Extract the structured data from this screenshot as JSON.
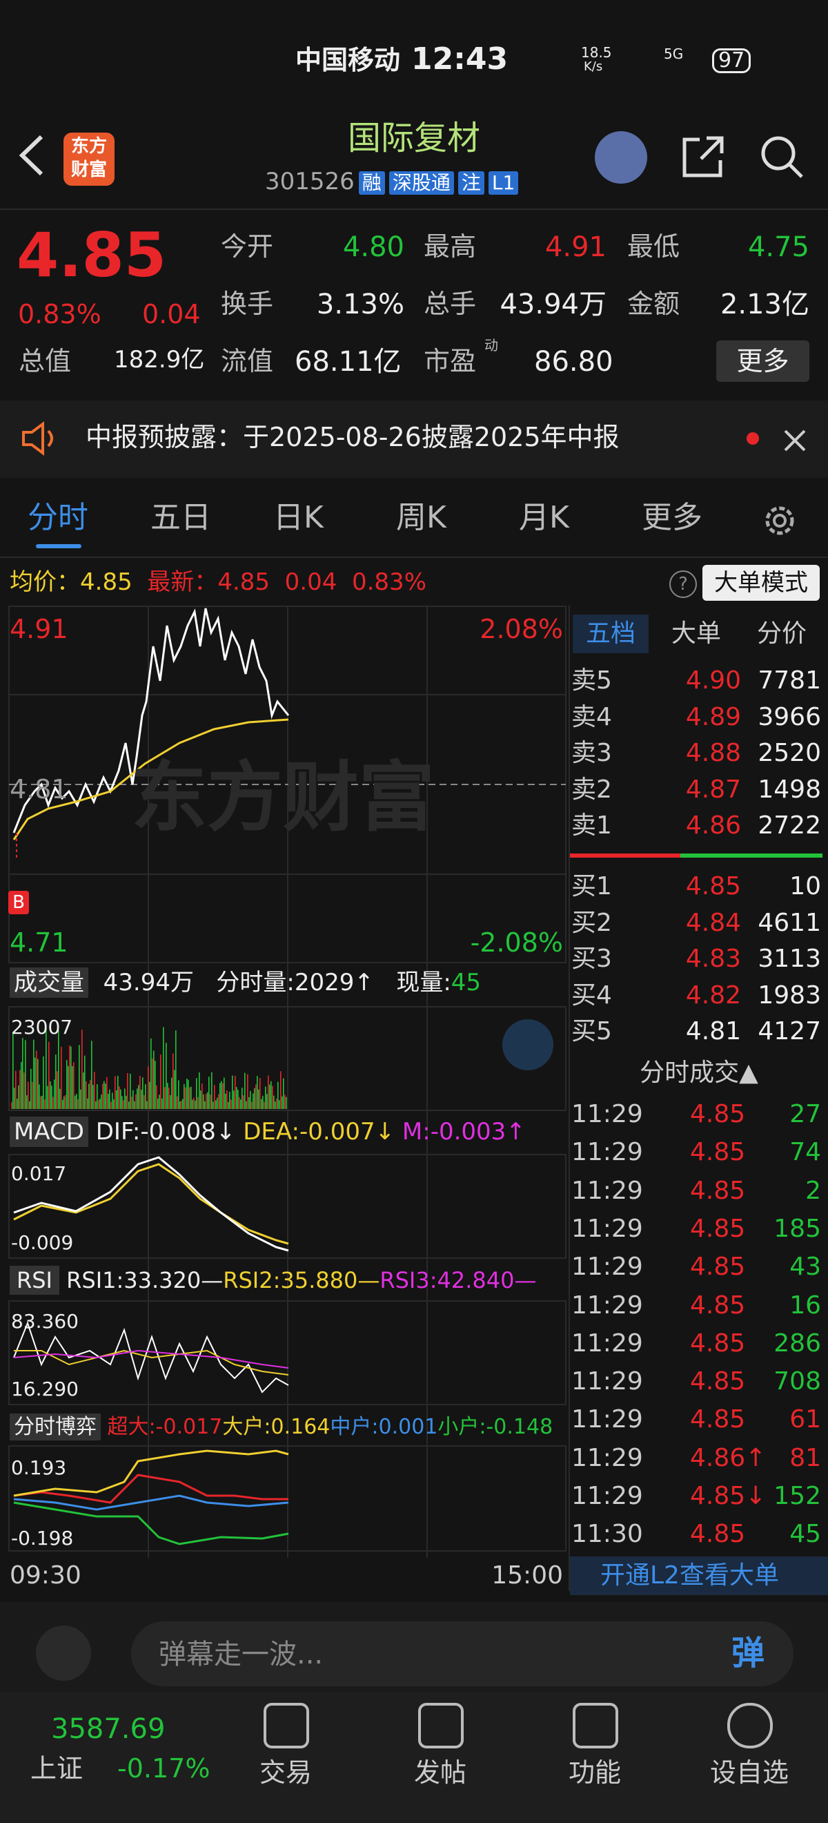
{
  "status": {
    "carrier": "中国移动",
    "time": "12:43",
    "speed": "18.5",
    "speed_unit": "K/s",
    "network": "5G",
    "battery": "97"
  },
  "header": {
    "logo": "东方财富",
    "title": "国际复材",
    "code": "301526",
    "tags": [
      "融",
      "深股通",
      "注",
      "L1"
    ]
  },
  "quote": {
    "price": "4.85",
    "change_pct": "0.83%",
    "change": "0.04",
    "stats": [
      {
        "label": "今开",
        "value": "4.80",
        "color": "#22c33a"
      },
      {
        "label": "最高",
        "value": "4.91",
        "color": "#e8262a"
      },
      {
        "label": "最低",
        "value": "4.75",
        "color": "#22c33a"
      },
      {
        "label": "换手",
        "value": "3.13%",
        "color": "#eeeeee"
      },
      {
        "label": "总手",
        "value": "43.94万",
        "color": "#eeeeee"
      },
      {
        "label": "金额",
        "value": "2.13亿",
        "color": "#eeeeee"
      }
    ],
    "row3": [
      {
        "label": "总值",
        "value": "182.9亿"
      },
      {
        "label": "流值",
        "value": "68.11亿"
      },
      {
        "label": "市盈",
        "sup": "动",
        "value": "86.80"
      }
    ],
    "more": "更多"
  },
  "notice": "中报预披露：于2025-08-26披露2025年中报",
  "tabs": [
    "分时",
    "五日",
    "日K",
    "周K",
    "月K",
    "更多"
  ],
  "info": {
    "avg_label": "均价：",
    "avg": "4.85",
    "last_label": "最新：",
    "last": "4.85",
    "change": "0.04",
    "pct": "0.83%",
    "mode": "大单模式"
  },
  "chart": {
    "high": "4.91",
    "high_pct": "2.08%",
    "mid": "4.81",
    "low": "4.71",
    "low_pct": "-2.08%",
    "watermark": "东方财富",
    "marker": "B"
  },
  "volume": {
    "label": "成交量",
    "total": "43.94万",
    "minute": "分时量:2029↑",
    "now_label": "现量:",
    "now": "45",
    "max": "23007"
  },
  "macd": {
    "label": "MACD",
    "dif": "DIF:-0.008↓",
    "dea": "DEA:-0.007↓",
    "m": "M:-0.003↑",
    "max": "0.017",
    "min": "-0.009"
  },
  "rsi": {
    "label": "RSI",
    "rsi1": "RSI1:33.320—",
    "rsi2": "RSI2:35.880—",
    "rsi3": "RSI3:42.840—",
    "max": "83.360",
    "min": "16.290"
  },
  "game": {
    "label": "分时博弈",
    "super": "超大:-0.017",
    "big": "大户:0.164",
    "mid": "中户:0.001",
    "small": "小户:-0.148",
    "max": "0.193",
    "min": "-0.198"
  },
  "time_axis": [
    "09:30",
    "15:00"
  ],
  "book": {
    "tabs": [
      "五档",
      "大单",
      "分价"
    ],
    "sell": [
      [
        "卖5",
        "4.90",
        "7781"
      ],
      [
        "卖4",
        "4.89",
        "3966"
      ],
      [
        "卖3",
        "4.88",
        "2520"
      ],
      [
        "卖2",
        "4.87",
        "1498"
      ],
      [
        "卖1",
        "4.86",
        "2722"
      ]
    ],
    "buy": [
      [
        "买1",
        "4.85",
        "10"
      ],
      [
        "买2",
        "4.84",
        "4611"
      ],
      [
        "买3",
        "4.83",
        "3113"
      ],
      [
        "买4",
        "4.82",
        "1983"
      ],
      [
        "买5",
        "4.81",
        "4127"
      ]
    ],
    "buy_price_colors": [
      "#e8262a",
      "#e8262a",
      "#e8262a",
      "#e8262a",
      "#eeeeee"
    ]
  },
  "trades": {
    "title": "分时成交▲",
    "rows": [
      [
        "11:29",
        "4.85",
        "27"
      ],
      [
        "11:29",
        "4.85",
        "74"
      ],
      [
        "11:29",
        "4.85",
        "2"
      ],
      [
        "11:29",
        "4.85",
        "185"
      ],
      [
        "11:29",
        "4.85",
        "43"
      ],
      [
        "11:29",
        "4.85",
        "16"
      ],
      [
        "11:29",
        "4.85",
        "286"
      ],
      [
        "11:29",
        "4.85",
        "708"
      ],
      [
        "11:29",
        "4.85",
        "61"
      ],
      [
        "11:29",
        "4.86↑",
        "81"
      ],
      [
        "11:29",
        "4.85↓",
        "152"
      ],
      [
        "11:30",
        "4.85",
        "45"
      ]
    ],
    "vol_colors": [
      "#22c33a",
      "#22c33a",
      "#22c33a",
      "#22c33a",
      "#22c33a",
      "#22c33a",
      "#22c33a",
      "#22c33a",
      "#e8262a",
      "#e8262a",
      "#22c33a",
      "#22c33a"
    ],
    "l2": "开通L2查看大单"
  },
  "input": {
    "placeholder": "弹幕走一波...",
    "button": "弹"
  },
  "nav": {
    "index_value": "3587.69",
    "index_name": "上证",
    "index_pct": "-0.17%",
    "items": [
      "交易",
      "发帖",
      "功能",
      "设自选"
    ]
  }
}
